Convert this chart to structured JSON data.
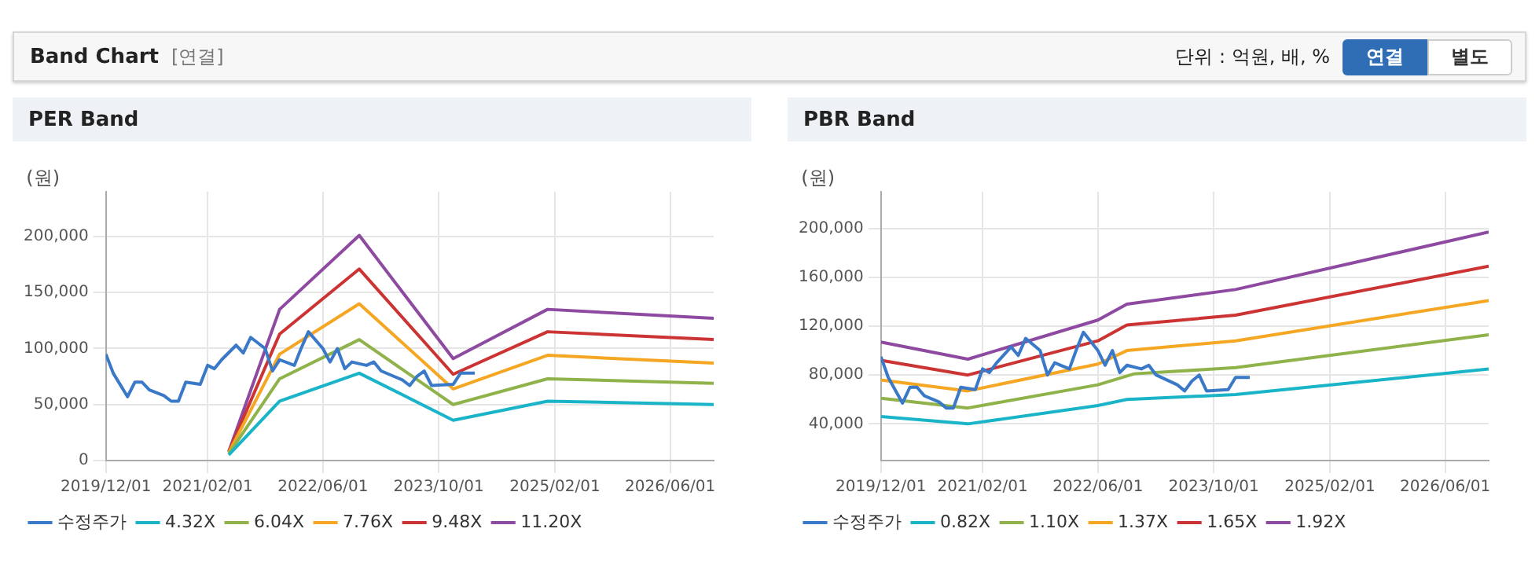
{
  "chart_data": [
    {
      "type": "other",
      "title": "Band Chart",
      "subtitle": "[연결]",
      "annotations": [
        "단위 : 억원, 배, %",
        "연결",
        "별도"
      ]
    },
    {
      "type": "line",
      "title": "PER Band",
      "ylabel": "(원)",
      "legend": "bottom",
      "grid": true,
      "marker": "none",
      "line_style": "solid",
      "xlim": [
        "2019-12-01",
        "2026-12-01"
      ],
      "xticks": [
        {
          "value": "2019-12-01",
          "label": "2019/12/01"
        },
        {
          "value": "2021-02-01",
          "label": "2021/02/01"
        },
        {
          "value": "2022-06-01",
          "label": "2022/06/01"
        },
        {
          "value": "2023-10-01",
          "label": "2023/10/01"
        },
        {
          "value": "2025-02-01",
          "label": "2025/02/01"
        },
        {
          "value": "2026-06-01",
          "label": "2026/06/01"
        }
      ],
      "ylim": [
        0,
        240000
      ],
      "yticks": [
        {
          "value": 0,
          "label": "0"
        },
        {
          "value": 50000,
          "label": "50,000"
        },
        {
          "value": 100000,
          "label": "100,000"
        },
        {
          "value": 150000,
          "label": "150,000"
        },
        {
          "value": 200000,
          "label": "200,000"
        }
      ],
      "series": [
        {
          "name": "수정주가",
          "color": "#3a78c8",
          "x": [
            "2019-12",
            "2020-01",
            "2020-03",
            "2020-04",
            "2020-05",
            "2020-06",
            "2020-08",
            "2020-09",
            "2020-10",
            "2020-11",
            "2021-01",
            "2021-02",
            "2021-03",
            "2021-04",
            "2021-06",
            "2021-07",
            "2021-08",
            "2021-10",
            "2021-11",
            "2021-12",
            "2022-02",
            "2022-03",
            "2022-04",
            "2022-06",
            "2022-07",
            "2022-08",
            "2022-09",
            "2022-10",
            "2022-12",
            "2023-01",
            "2023-02",
            "2023-05",
            "2023-06",
            "2023-07",
            "2023-08",
            "2023-09",
            "2023-12",
            "2024-01",
            "2024-03"
          ],
          "values": [
            95000,
            78000,
            57000,
            70000,
            70000,
            63000,
            58000,
            53000,
            53000,
            70000,
            68000,
            85000,
            82000,
            90000,
            103000,
            96000,
            110000,
            100000,
            80000,
            90000,
            85000,
            100000,
            115000,
            100000,
            88000,
            100000,
            82000,
            88000,
            85000,
            88000,
            80000,
            72000,
            67000,
            75000,
            80000,
            67000,
            68000,
            78000,
            78000
          ]
        },
        {
          "name": "4.32X",
          "color": "#1ab4c8",
          "x": [
            "2021-05",
            "2021-12",
            "2022-11",
            "2023-12",
            "2025-01",
            "2026-12"
          ],
          "values": [
            5000,
            53000,
            78000,
            36000,
            53000,
            50000
          ]
        },
        {
          "name": "6.04X",
          "color": "#8fb24a",
          "x": [
            "2021-05",
            "2021-12",
            "2022-11",
            "2023-12",
            "2025-01",
            "2026-12"
          ],
          "values": [
            6000,
            73000,
            108000,
            50000,
            73000,
            69000
          ]
        },
        {
          "name": "7.76X",
          "color": "#f5a623",
          "x": [
            "2021-05",
            "2021-12",
            "2022-11",
            "2023-12",
            "2025-01",
            "2026-12"
          ],
          "values": [
            7000,
            95000,
            140000,
            64000,
            94000,
            87000
          ]
        },
        {
          "name": "9.48X",
          "color": "#cc3333",
          "x": [
            "2021-05",
            "2021-12",
            "2022-11",
            "2023-12",
            "2025-01",
            "2026-12"
          ],
          "values": [
            8000,
            113000,
            171000,
            77000,
            115000,
            108000
          ]
        },
        {
          "name": "11.20X",
          "color": "#8e4aa0",
          "x": [
            "2021-05",
            "2021-12",
            "2022-11",
            "2023-12",
            "2025-01",
            "2026-12"
          ],
          "values": [
            8000,
            135000,
            201000,
            91000,
            135000,
            127000
          ]
        }
      ]
    },
    {
      "type": "line",
      "title": "PBR Band",
      "ylabel": "(원)",
      "legend": "bottom",
      "grid": true,
      "marker": "none",
      "line_style": "solid",
      "xlim": [
        "2019-12-01",
        "2026-12-01"
      ],
      "xticks": [
        {
          "value": "2019-12-01",
          "label": "2019/12/01"
        },
        {
          "value": "2021-02-01",
          "label": "2021/02/01"
        },
        {
          "value": "2022-06-01",
          "label": "2022/06/01"
        },
        {
          "value": "2023-10-01",
          "label": "2023/10/01"
        },
        {
          "value": "2025-02-01",
          "label": "2025/02/01"
        },
        {
          "value": "2026-06-01",
          "label": "2026/06/01"
        }
      ],
      "ylim": [
        10000,
        230000
      ],
      "yticks": [
        {
          "value": 40000,
          "label": "40,000"
        },
        {
          "value": 80000,
          "label": "80,000"
        },
        {
          "value": 120000,
          "label": "120,000"
        },
        {
          "value": 160000,
          "label": "160,000"
        },
        {
          "value": 200000,
          "label": "200,000"
        }
      ],
      "series": [
        {
          "name": "수정주가",
          "color": "#3a78c8",
          "x": [
            "2019-12",
            "2020-01",
            "2020-03",
            "2020-04",
            "2020-05",
            "2020-06",
            "2020-08",
            "2020-09",
            "2020-10",
            "2020-11",
            "2021-01",
            "2021-02",
            "2021-03",
            "2021-04",
            "2021-06",
            "2021-07",
            "2021-08",
            "2021-10",
            "2021-11",
            "2021-12",
            "2022-02",
            "2022-03",
            "2022-04",
            "2022-06",
            "2022-07",
            "2022-08",
            "2022-09",
            "2022-10",
            "2022-12",
            "2023-01",
            "2023-02",
            "2023-05",
            "2023-06",
            "2023-07",
            "2023-08",
            "2023-09",
            "2023-12",
            "2024-01",
            "2024-03"
          ],
          "values": [
            95000,
            78000,
            57000,
            70000,
            70000,
            63000,
            58000,
            53000,
            53000,
            70000,
            68000,
            85000,
            82000,
            90000,
            103000,
            96000,
            110000,
            100000,
            80000,
            90000,
            85000,
            100000,
            115000,
            100000,
            88000,
            100000,
            82000,
            88000,
            85000,
            88000,
            80000,
            72000,
            67000,
            75000,
            80000,
            67000,
            68000,
            78000,
            78000
          ]
        },
        {
          "name": "0.82X",
          "color": "#1ab4c8",
          "x": [
            "2019-12",
            "2020-12",
            "2022-06",
            "2022-10",
            "2024-01",
            "2026-12"
          ],
          "values": [
            46000,
            40000,
            55000,
            60000,
            64000,
            85000
          ]
        },
        {
          "name": "1.10X",
          "color": "#8fb24a",
          "x": [
            "2019-12",
            "2020-12",
            "2022-06",
            "2022-11",
            "2024-01",
            "2026-12"
          ],
          "values": [
            61000,
            53000,
            72000,
            81000,
            86000,
            113000
          ]
        },
        {
          "name": "1.37X",
          "color": "#f5a623",
          "x": [
            "2019-12",
            "2020-12",
            "2022-06",
            "2022-10",
            "2024-01",
            "2026-12"
          ],
          "values": [
            76000,
            67000,
            89000,
            100000,
            108000,
            141000
          ]
        },
        {
          "name": "1.65X",
          "color": "#cc3333",
          "x": [
            "2019-12",
            "2020-12",
            "2022-06",
            "2022-10",
            "2024-01",
            "2026-12"
          ],
          "values": [
            92000,
            80000,
            108000,
            121000,
            129000,
            169000
          ]
        },
        {
          "name": "1.92X",
          "color": "#8e4aa0",
          "x": [
            "2019-12",
            "2020-12",
            "2022-06",
            "2022-10",
            "2024-01",
            "2026-12"
          ],
          "values": [
            107000,
            93000,
            125000,
            138000,
            150000,
            197000
          ]
        }
      ]
    }
  ]
}
